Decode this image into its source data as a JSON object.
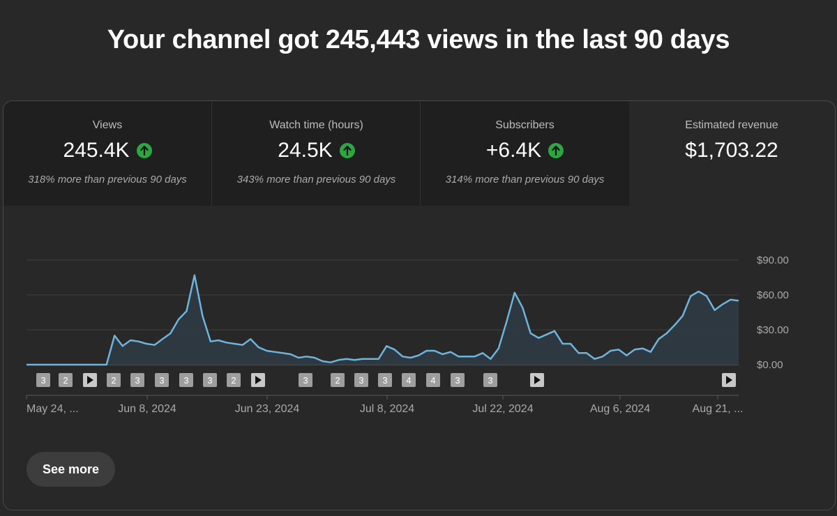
{
  "headline": "Your channel got 245,443 views in the last 90 days",
  "metrics": [
    {
      "label": "Views",
      "value": "245.4K",
      "trend_icon": "arrow-up-icon",
      "comparison": "318% more than previous 90 days"
    },
    {
      "label": "Watch time (hours)",
      "value": "24.5K",
      "trend_icon": "arrow-up-icon",
      "comparison": "343% more than previous 90 days"
    },
    {
      "label": "Subscribers",
      "value": "+6.4K",
      "trend_icon": "arrow-up-icon",
      "comparison": "314% more than previous 90 days"
    },
    {
      "label": "Estimated revenue",
      "value": "$1,703.22"
    }
  ],
  "see_more_label": "See more",
  "colors": {
    "line": "#6fb4dc",
    "area": "#2e3a42",
    "trend_up": "#2ba640",
    "panel_selected": "#1f1f1f",
    "background": "#282828"
  },
  "chart_data": {
    "type": "area",
    "ylabel_ticks": [
      "$0.00",
      "$30.00",
      "$60.00",
      "$90.00"
    ],
    "ylim": [
      0,
      90
    ],
    "grid": true,
    "x_tick_labels": [
      "May 24, ...",
      "Jun 8, 2024",
      "Jun 23, 2024",
      "Jul 8, 2024",
      "Jul 22, 2024",
      "Aug 6, 2024",
      "Aug 21, ..."
    ],
    "series": [
      {
        "values": [
          0,
          0,
          0,
          0,
          0,
          0,
          0,
          0,
          0,
          0,
          0,
          25,
          16,
          21,
          20,
          18,
          17,
          22,
          27,
          39,
          46,
          77,
          42,
          20,
          21,
          19,
          18,
          17,
          22,
          15,
          12,
          11,
          10,
          9,
          6,
          7,
          6,
          3,
          2,
          4,
          5,
          4,
          5,
          5,
          5,
          16,
          13,
          7,
          6,
          8,
          12,
          12,
          9,
          11,
          7,
          7,
          7,
          10,
          5,
          14,
          37,
          62,
          49,
          27,
          23,
          26,
          29,
          18,
          18,
          10,
          10,
          5,
          7,
          12,
          13,
          8,
          13,
          14,
          11,
          22,
          27,
          34,
          42,
          59,
          63,
          59,
          47,
          52,
          56,
          55
        ]
      }
    ],
    "markers": [
      "3",
      "2",
      "play",
      "2",
      "3",
      "3",
      "3",
      "3",
      "2",
      "play",
      "3",
      "2",
      "3",
      "3",
      "4",
      "4",
      "3",
      "3",
      "play",
      "play"
    ]
  }
}
